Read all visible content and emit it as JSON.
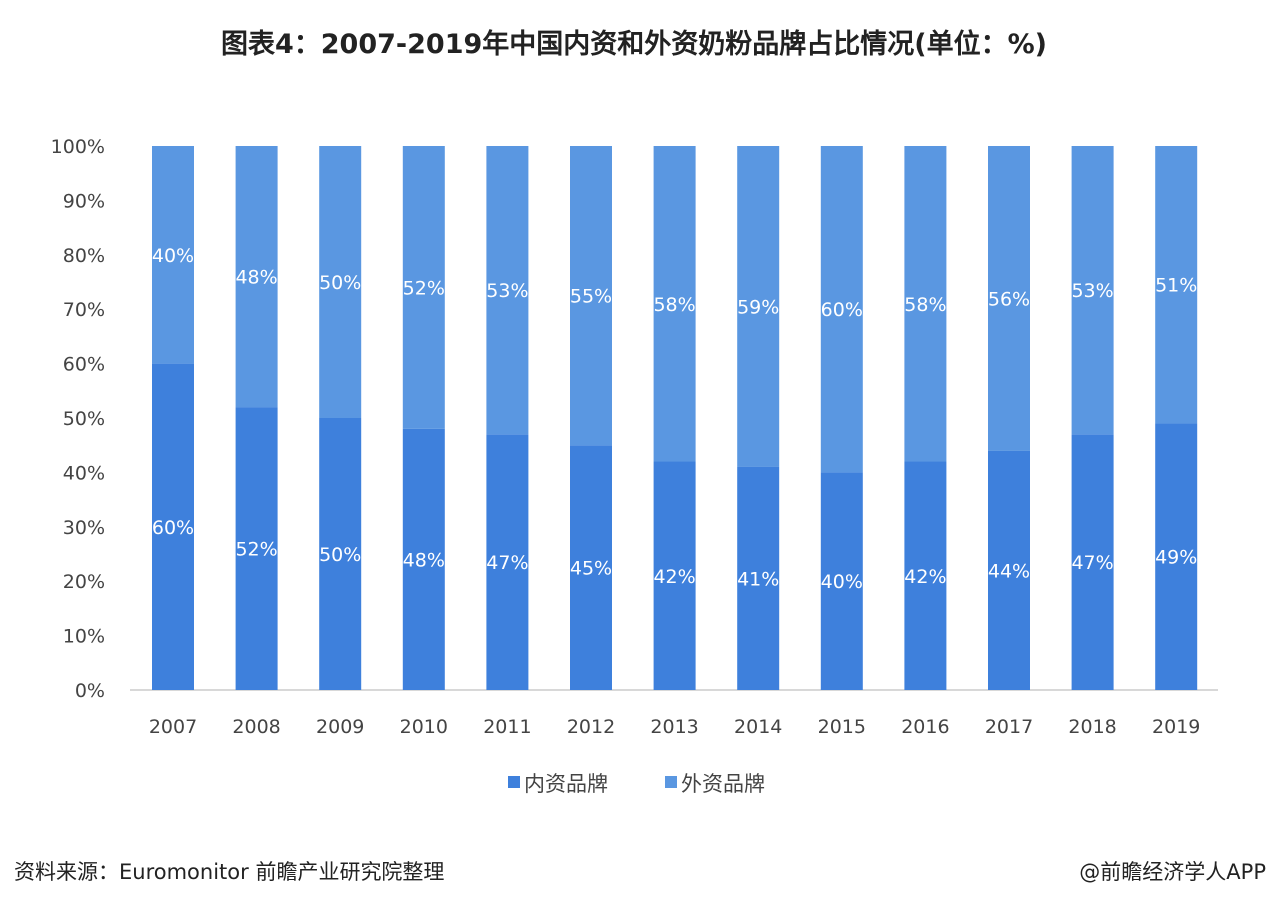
{
  "title": "图表4：2007-2019年中国内资和外资奶粉品牌占比情况(单位：%)",
  "footer": {
    "source": "资料来源：Euromonitor 前瞻产业研究院整理",
    "credit": "@前瞻经济学人APP"
  },
  "chart_data": {
    "type": "bar",
    "stacked": true,
    "categories": [
      "2007",
      "2008",
      "2009",
      "2010",
      "2011",
      "2012",
      "2013",
      "2014",
      "2015",
      "2016",
      "2017",
      "2018",
      "2019"
    ],
    "series": [
      {
        "name": "内资品牌",
        "color": "#3e80dc",
        "values": [
          60,
          52,
          50,
          48,
          47,
          45,
          42,
          41,
          40,
          42,
          44,
          47,
          49
        ]
      },
      {
        "name": "外资品牌",
        "color": "#5a97e1",
        "values": [
          40,
          48,
          50,
          52,
          53,
          55,
          58,
          59,
          60,
          58,
          56,
          53,
          51
        ]
      }
    ],
    "ylim": [
      0,
      100
    ],
    "yticks": [
      "0%",
      "10%",
      "20%",
      "30%",
      "40%",
      "50%",
      "60%",
      "70%",
      "80%",
      "90%",
      "100%"
    ],
    "grid": false,
    "legend": "bottom"
  }
}
